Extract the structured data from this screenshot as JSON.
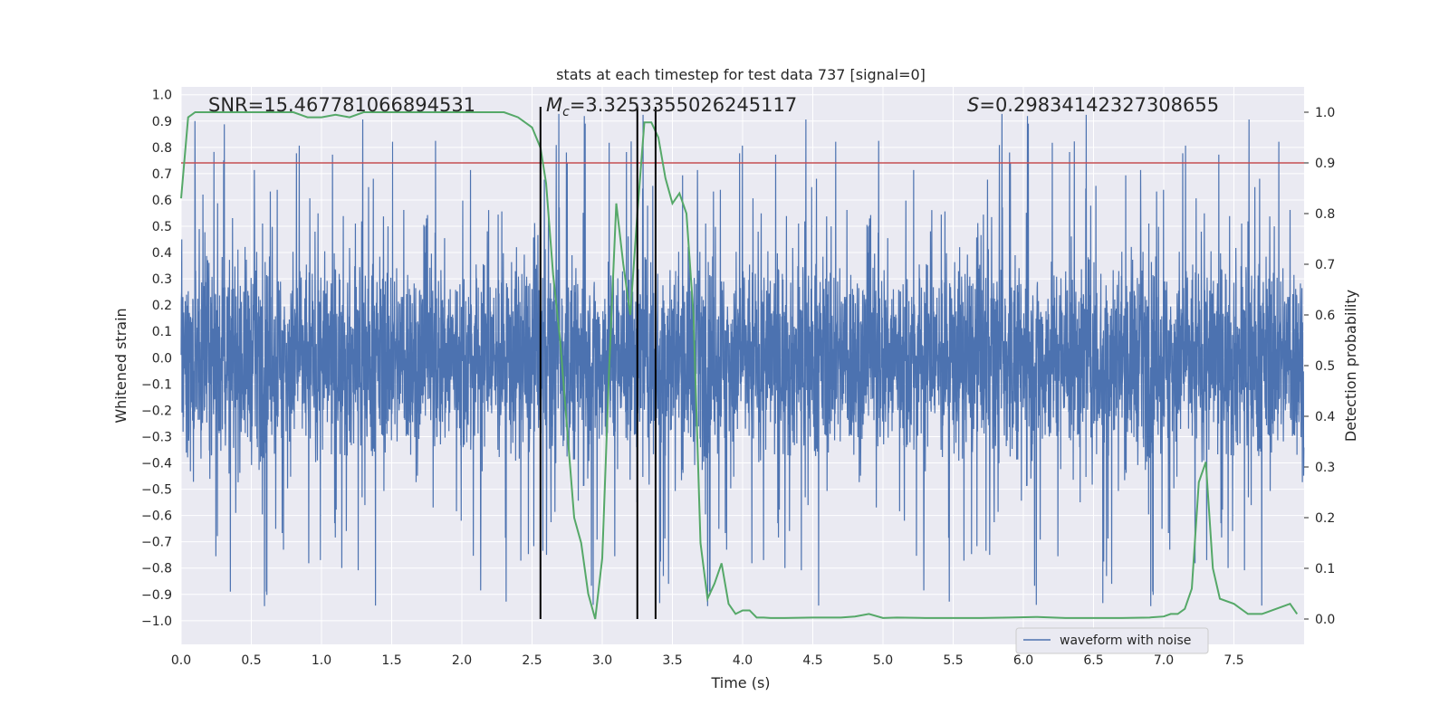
{
  "chart_data": {
    "type": "line",
    "title": "stats at each timestep for test data 737 [signal=0]",
    "xlabel": "Time (s)",
    "ylabel_left": "Whitened strain",
    "ylabel_right": "Detection probability",
    "xlim": [
      0.0,
      8.0
    ],
    "ylim_left": [
      -1.09,
      1.03
    ],
    "ylim_right": [
      -0.05,
      1.05
    ],
    "x_ticks": [
      "0.0",
      "0.5",
      "1.0",
      "1.5",
      "2.0",
      "2.5",
      "3.0",
      "3.5",
      "4.0",
      "4.5",
      "5.0",
      "5.5",
      "6.0",
      "6.5",
      "7.0",
      "7.5"
    ],
    "y_ticks_left": [
      "1.0",
      "0.9",
      "0.8",
      "0.7",
      "0.6",
      "0.5",
      "0.4",
      "0.3",
      "0.2",
      "0.1",
      "0.0",
      "−0.1",
      "−0.2",
      "−0.3",
      "−0.4",
      "−0.5",
      "−0.6",
      "−0.7",
      "−0.8",
      "−0.9",
      "−1.0"
    ],
    "y_ticks_right": [
      "1.0",
      "0.9",
      "0.8",
      "0.7",
      "0.6",
      "0.5",
      "0.4",
      "0.3",
      "0.2",
      "0.1",
      "0.0"
    ],
    "annotations": {
      "snr": "SNR=15.467781066894531",
      "mc_symbol": "M",
      "mc_sub": "c",
      "mc_value": "=3.3253355026245117",
      "s_symbol": "S",
      "s_value": "=0.29834142327308655"
    },
    "threshold": 0.9,
    "vertical_lines": [
      2.56,
      3.25,
      3.38
    ],
    "series": [
      {
        "name": "waveform with noise",
        "color": "#4c72b0",
        "axis": "left",
        "kind": "noise_waveform",
        "core_amplitude": 0.35,
        "max_abs": 1.0
      },
      {
        "color": "#55a868",
        "axis": "right",
        "x": [
          0.0,
          0.05,
          0.1,
          0.15,
          0.2,
          0.3,
          0.4,
          0.5,
          0.6,
          0.7,
          0.8,
          0.9,
          1.0,
          1.1,
          1.2,
          1.3,
          1.4,
          1.5,
          1.6,
          1.7,
          1.8,
          1.9,
          2.0,
          2.1,
          2.2,
          2.3,
          2.4,
          2.5,
          2.56,
          2.6,
          2.65,
          2.7,
          2.8,
          2.85,
          2.9,
          2.95,
          3.0,
          3.05,
          3.1,
          3.15,
          3.2,
          3.25,
          3.3,
          3.35,
          3.4,
          3.45,
          3.5,
          3.55,
          3.6,
          3.65,
          3.7,
          3.75,
          3.8,
          3.85,
          3.9,
          3.95,
          4.0,
          4.05,
          4.1,
          4.15,
          4.2,
          4.3,
          4.5,
          4.7,
          4.8,
          4.9,
          5.0,
          5.1,
          5.3,
          5.5,
          5.7,
          5.9,
          6.1,
          6.3,
          6.5,
          6.7,
          6.9,
          7.0,
          7.05,
          7.1,
          7.15,
          7.2,
          7.25,
          7.3,
          7.35,
          7.4,
          7.5,
          7.6,
          7.7,
          7.8,
          7.9,
          7.95
        ],
        "values": [
          0.83,
          0.99,
          1.0,
          1.0,
          1.0,
          1.0,
          1.0,
          1.0,
          1.0,
          1.0,
          1.0,
          0.99,
          0.99,
          0.995,
          0.99,
          1.0,
          1.0,
          1.0,
          1.0,
          1.0,
          1.0,
          1.0,
          1.0,
          1.0,
          1.0,
          1.0,
          0.99,
          0.97,
          0.93,
          0.86,
          0.68,
          0.55,
          0.2,
          0.15,
          0.05,
          0.0,
          0.12,
          0.5,
          0.82,
          0.7,
          0.6,
          0.8,
          0.98,
          0.98,
          0.95,
          0.87,
          0.82,
          0.84,
          0.8,
          0.6,
          0.15,
          0.04,
          0.07,
          0.11,
          0.03,
          0.01,
          0.017,
          0.017,
          0.003,
          0.003,
          0.002,
          0.002,
          0.003,
          0.003,
          0.005,
          0.01,
          0.002,
          0.003,
          0.002,
          0.002,
          0.002,
          0.003,
          0.004,
          0.002,
          0.002,
          0.002,
          0.003,
          0.005,
          0.01,
          0.01,
          0.02,
          0.06,
          0.27,
          0.31,
          0.1,
          0.04,
          0.03,
          0.01,
          0.01,
          0.02,
          0.03,
          0.01
        ]
      }
    ]
  }
}
